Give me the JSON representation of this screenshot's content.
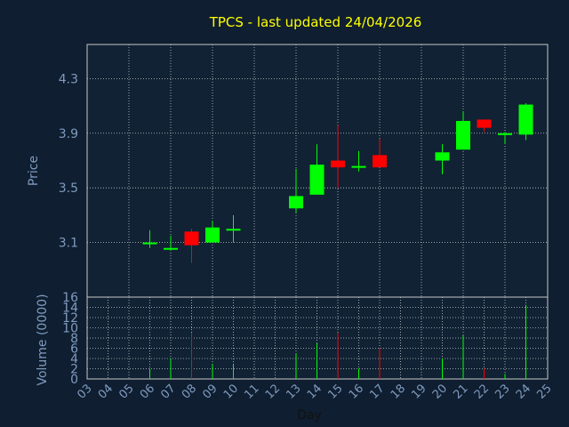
{
  "chart_data": {
    "type": "candlestick",
    "title": "TPCS - last updated 24/04/2026",
    "price_axis": {
      "ylabel": "Price",
      "ylim": [
        2.7,
        4.55
      ],
      "ticks": [
        "3.1",
        "3.5",
        "3.9",
        "4.3"
      ]
    },
    "volume_axis": {
      "ylabel": "Volume (0000)",
      "ylim": [
        0,
        16
      ],
      "ticks": [
        "0",
        "2",
        "4",
        "6",
        "8",
        "10",
        "12",
        "14",
        "16"
      ]
    },
    "xlabel": "Day",
    "x_ticks": [
      "03",
      "04",
      "05",
      "06",
      "07",
      "08",
      "09",
      "10",
      "11",
      "12",
      "13",
      "14",
      "15",
      "16",
      "17",
      "18",
      "19",
      "20",
      "21",
      "22",
      "23",
      "24",
      "25"
    ],
    "candles": [
      {
        "day": "06",
        "open": 3.1,
        "high": 3.19,
        "low": 3.06,
        "close": 3.1,
        "volume": 2
      },
      {
        "day": "07",
        "open": 3.05,
        "high": 3.15,
        "low": 3.04,
        "close": 3.06,
        "volume": 4
      },
      {
        "day": "08",
        "open": 3.18,
        "high": 3.2,
        "low": 2.95,
        "close": 3.08,
        "volume": 9
      },
      {
        "day": "09",
        "open": 3.1,
        "high": 3.26,
        "low": 3.1,
        "close": 3.21,
        "volume": 3
      },
      {
        "day": "10",
        "open": 3.19,
        "high": 3.3,
        "low": 3.1,
        "close": 3.2,
        "volume": 3
      },
      {
        "day": "13",
        "open": 3.35,
        "high": 3.64,
        "low": 3.32,
        "close": 3.44,
        "volume": 5
      },
      {
        "day": "14",
        "open": 3.45,
        "high": 3.82,
        "low": 3.45,
        "close": 3.67,
        "volume": 7
      },
      {
        "day": "15",
        "open": 3.7,
        "high": 3.96,
        "low": 3.5,
        "close": 3.65,
        "volume": 9
      },
      {
        "day": "16",
        "open": 3.65,
        "high": 3.77,
        "low": 3.62,
        "close": 3.66,
        "volume": 2
      },
      {
        "day": "17",
        "open": 3.74,
        "high": 3.86,
        "low": 3.65,
        "close": 3.65,
        "volume": 6
      },
      {
        "day": "20",
        "open": 3.7,
        "high": 3.82,
        "low": 3.6,
        "close": 3.76,
        "volume": 4
      },
      {
        "day": "21",
        "open": 3.78,
        "high": 4.06,
        "low": 3.78,
        "close": 3.99,
        "volume": 8.5
      },
      {
        "day": "22",
        "open": 4.0,
        "high": 4.0,
        "low": 3.91,
        "close": 3.94,
        "volume": 2
      },
      {
        "day": "23",
        "open": 3.89,
        "high": 3.91,
        "low": 3.82,
        "close": 3.9,
        "volume": 1
      },
      {
        "day": "24",
        "open": 3.89,
        "high": 4.12,
        "low": 3.85,
        "close": 4.11,
        "volume": 14.5
      }
    ],
    "colors": {
      "up": "#00ff00",
      "down": "#ff0000",
      "background": "#0f1e30",
      "plot_background": "#102234",
      "grid": "#c8c8c8",
      "tick_text": "#7f9bbf",
      "title": "#ffff00",
      "axis_label_dark": "#111111"
    },
    "grid": true,
    "legend": "none"
  }
}
